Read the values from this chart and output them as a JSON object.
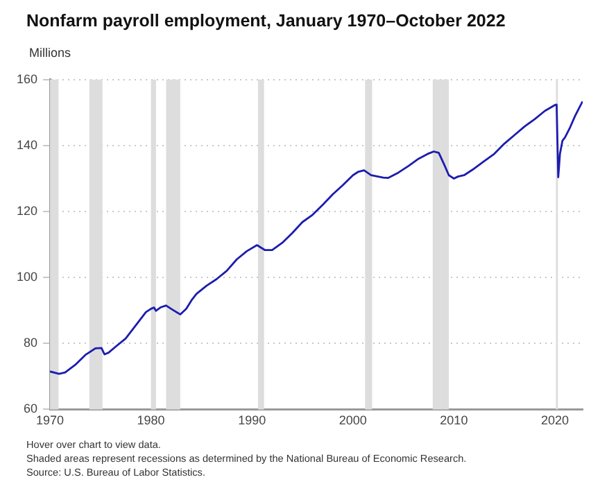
{
  "chart_data": {
    "type": "line",
    "title": "Nonfarm payroll employment, January 1970–October 2022",
    "ylabel": "Millions",
    "annotations": [
      "Hover over chart to view data.",
      "Shaded areas represent recessions as determined by the National Bureau of Economic Research.",
      "Source: U.S. Bureau of Labor Statistics."
    ],
    "x": [
      1970.0,
      1970.9,
      1971.5,
      1972.5,
      1973.5,
      1974.5,
      1975.1,
      1975.4,
      1975.8,
      1976.5,
      1977.5,
      1978.5,
      1979.5,
      1980.0,
      1980.3,
      1980.5,
      1981.0,
      1981.5,
      1982.0,
      1982.9,
      1983.5,
      1984.0,
      1984.5,
      1985.5,
      1986.5,
      1987.5,
      1988.5,
      1989.5,
      1990.5,
      1991.3,
      1992.0,
      1993.0,
      1994.0,
      1995.0,
      1996.0,
      1997.0,
      1998.0,
      1999.0,
      2000.0,
      2000.5,
      2001.1,
      2001.8,
      2003.0,
      2003.5,
      2004.5,
      2005.5,
      2006.5,
      2007.5,
      2008.0,
      2008.5,
      2009.0,
      2009.5,
      2010.0,
      2010.4,
      2011.0,
      2012.0,
      2013.0,
      2014.0,
      2015.0,
      2016.0,
      2017.0,
      2018.0,
      2019.0,
      2020.0,
      2020.17,
      2020.33,
      2020.5,
      2020.75,
      2021.0,
      2021.5,
      2022.0,
      2022.5,
      2022.75
    ],
    "series": [
      {
        "color": "#1c1cb0",
        "values": [
          71.5,
          70.8,
          71.2,
          73.5,
          76.5,
          78.5,
          78.6,
          76.7,
          77.2,
          79,
          81.5,
          85.5,
          89.5,
          90.5,
          90.9,
          89.9,
          91,
          91.5,
          90.5,
          88.8,
          90.5,
          93,
          95,
          97.5,
          99.5,
          102,
          105.5,
          108,
          109.8,
          108.3,
          108.3,
          110.5,
          113.5,
          116.8,
          119,
          122,
          125.2,
          128,
          131,
          132,
          132.5,
          131,
          130.3,
          130.2,
          131.8,
          133.8,
          136,
          137.6,
          138.2,
          137.8,
          134.5,
          131,
          130,
          130.6,
          131,
          133,
          135.3,
          137.5,
          140.6,
          143.2,
          145.8,
          148,
          150.5,
          152.3,
          152.4,
          130.4,
          137.5,
          141.5,
          142.5,
          145.5,
          149,
          152,
          153.4
        ]
      }
    ],
    "xlim": [
      1970,
      2022.75
    ],
    "ylim": [
      60,
      160
    ],
    "xticks": [
      1970,
      1980,
      1990,
      2000,
      2010,
      2020
    ],
    "yticks": [
      60,
      80,
      100,
      120,
      140,
      160
    ],
    "grid": "y",
    "marker": "none",
    "bands": [
      {
        "axis": "x",
        "from": 1970.0,
        "to": 1970.85,
        "color": "#dddddd"
      },
      {
        "axis": "x",
        "from": 1973.9,
        "to": 1975.2,
        "color": "#dddddd"
      },
      {
        "axis": "x",
        "from": 1980.0,
        "to": 1980.5,
        "color": "#dddddd"
      },
      {
        "axis": "x",
        "from": 1981.5,
        "to": 1982.9,
        "color": "#dddddd"
      },
      {
        "axis": "x",
        "from": 1990.6,
        "to": 1991.2,
        "color": "#dddddd"
      },
      {
        "axis": "x",
        "from": 2001.2,
        "to": 2001.9,
        "color": "#dddddd"
      },
      {
        "axis": "x",
        "from": 2007.9,
        "to": 2009.5,
        "color": "#dddddd"
      },
      {
        "axis": "x",
        "from": 2020.1,
        "to": 2020.3,
        "color": "#dddddd"
      }
    ]
  }
}
